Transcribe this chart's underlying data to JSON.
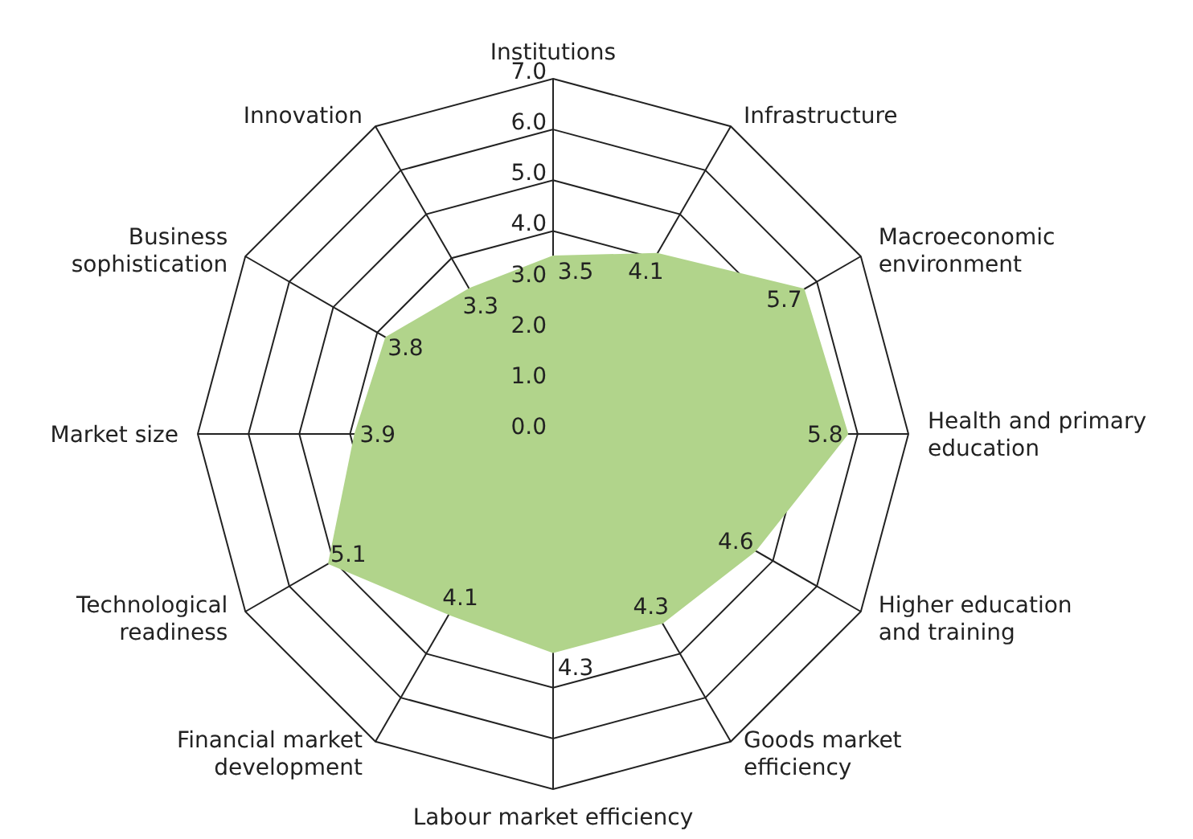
{
  "chart_data": {
    "type": "radar",
    "categories": [
      "Institutions",
      "Infrastructure",
      "Macroeconomic environment",
      "Health and primary education",
      "Higher education and training",
      "Goods market efficiency",
      "Labour market efficiency",
      "Financial market development",
      "Technological readiness",
      "Market size",
      "Business sophistication",
      "Innovation"
    ],
    "series": [
      {
        "color": "#b1d48b",
        "values": [
          3.5,
          4.1,
          5.7,
          5.8,
          4.6,
          4.3,
          4.3,
          4.1,
          5.1,
          3.9,
          3.8,
          3.3
        ]
      }
    ],
    "ylim": [
      0,
      7
    ],
    "yticks": [
      {
        "value": 0,
        "label": "0.0"
      },
      {
        "value": 1,
        "label": "1.0"
      },
      {
        "value": 2,
        "label": "2.0"
      },
      {
        "value": 3,
        "label": "3.0"
      },
      {
        "value": 4,
        "label": "4.0"
      },
      {
        "value": 5,
        "label": "5.0"
      },
      {
        "value": 6,
        "label": "6.0"
      },
      {
        "value": 7,
        "label": "7.0"
      }
    ],
    "grid": true,
    "data_labels": true
  }
}
